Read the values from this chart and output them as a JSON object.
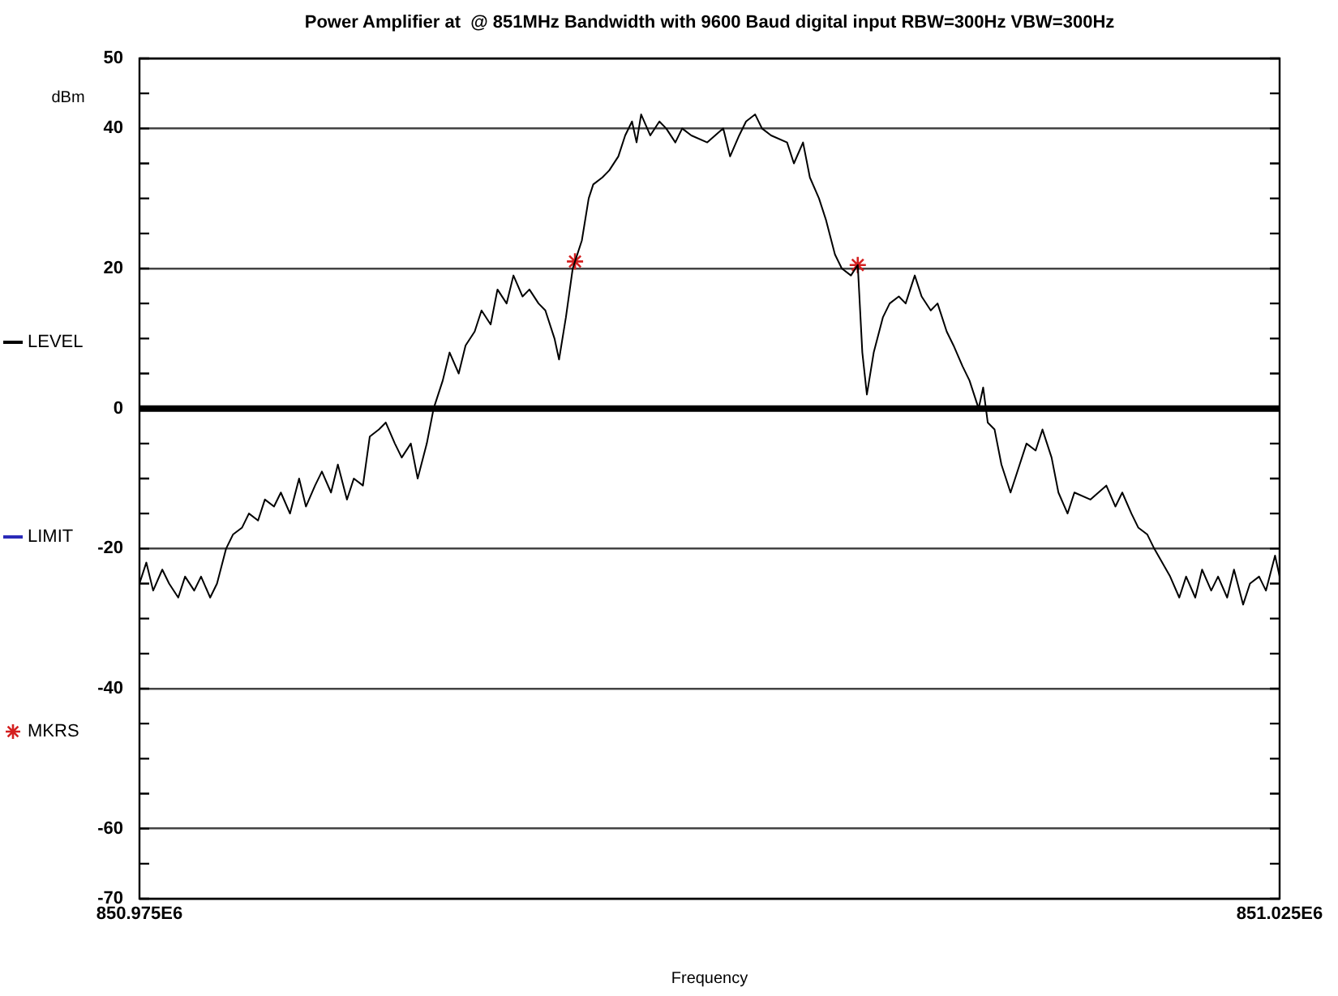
{
  "chart_data": {
    "type": "line",
    "title": "Power Amplifier at  @ 851MHz Bandwidth with 9600 Baud digital input RBW=300Hz VBW=300Hz",
    "xlabel": "Frequency",
    "ylabel": "dBm",
    "series": [
      {
        "name": "LEVEL",
        "type": "line",
        "color": "#000000",
        "x": [
          850975000,
          850975300,
          850975600,
          850976000,
          850976300,
          850976700,
          850977000,
          850977400,
          850977700,
          850978100,
          850978400,
          850978800,
          850979100,
          850979500,
          850979800,
          850980200,
          850980500,
          850980900,
          850981200,
          850981600,
          850982000,
          850982300,
          850982700,
          850983000,
          850983400,
          850983700,
          850984100,
          850984400,
          850984800,
          850985100,
          850985500,
          850985800,
          850986200,
          850986500,
          850986900,
          850987200,
          850987600,
          850987900,
          850988300,
          850988600,
          850989000,
          850989300,
          850989700,
          850990000,
          850990400,
          850990700,
          850991100,
          850991400,
          850991800,
          850992100,
          850992500,
          850992800,
          850993200,
          850993400,
          850993700,
          850994000,
          850994100,
          850994400,
          850994700,
          850994900,
          850995300,
          850995600,
          850996000,
          850996300,
          850996600,
          850996800,
          850997000,
          850997400,
          850997800,
          850998100,
          850998500,
          850998800,
          850999200,
          850999900,
          851000600,
          851000900,
          851001300,
          851001600,
          851002000,
          851002300,
          851002700,
          851003400,
          851003700,
          851004100,
          851004400,
          851004800,
          851005100,
          851005500,
          851005800,
          851006200,
          851006500,
          851006700,
          851006900,
          851007200,
          851007600,
          851007900,
          851008300,
          851008600,
          851009000,
          851009300,
          851009700,
          851010000,
          851010400,
          851010700,
          851011100,
          851011400,
          851011800,
          851012000,
          851012200,
          851012500,
          851012800,
          851013200,
          851013600,
          851013900,
          851014300,
          851014600,
          851015000,
          851015300,
          851015700,
          851016000,
          851016700,
          851017400,
          851017800,
          851018100,
          851018500,
          851018800,
          851019200,
          851019500,
          851020200,
          851020600,
          851020900,
          851021300,
          851021600,
          851022000,
          851022300,
          851022700,
          851023000,
          851023400,
          851023700,
          851024100,
          851024400,
          851024800,
          851025000
        ],
        "values": [
          -25,
          -22,
          -26,
          -23,
          -25,
          -27,
          -24,
          -26,
          -24,
          -27,
          -25,
          -20,
          -18,
          -17,
          -15,
          -16,
          -13,
          -14,
          -12,
          -15,
          -10,
          -14,
          -11,
          -9,
          -12,
          -8,
          -13,
          -10,
          -11,
          -4,
          -3,
          -2,
          -5,
          -7,
          -5,
          -10,
          -5,
          0,
          4,
          8,
          5,
          9,
          11,
          14,
          12,
          17,
          15,
          19,
          16,
          17,
          15,
          14,
          10,
          7,
          13,
          20,
          21,
          24,
          30,
          32,
          33,
          34,
          36,
          39,
          41,
          38,
          42,
          39,
          41,
          40,
          38,
          40,
          39,
          38,
          40,
          36,
          39,
          41,
          42,
          40,
          39,
          38,
          35,
          38,
          33,
          30,
          27,
          22,
          20,
          19,
          20.5,
          8,
          2,
          8,
          13,
          15,
          16,
          15,
          19,
          16,
          14,
          15,
          11,
          9,
          6,
          4,
          0,
          3,
          -2,
          -3,
          -8,
          -12,
          -8,
          -5,
          -6,
          -3,
          -7,
          -12,
          -15,
          -12,
          -13,
          -11,
          -14,
          -12,
          -15,
          -17,
          -18,
          -20,
          -24,
          -27,
          -24,
          -27,
          -23,
          -26,
          -24,
          -27,
          -23,
          -28,
          -25,
          -24,
          -26,
          -21,
          -24
        ]
      },
      {
        "name": "LIMIT",
        "type": "line",
        "color": "#2a2ab8"
      },
      {
        "name": "MKRS",
        "type": "scatter",
        "marker": "cross",
        "color": "#d42020",
        "x": [
          850994100,
          851006500
        ],
        "values": [
          21,
          20.5
        ]
      }
    ],
    "xlim": [
      850975000,
      851025000
    ],
    "xticks": [
      {
        "value": 850975000,
        "label": "850.975E6"
      },
      {
        "value": 851025000,
        "label": "851.025E6"
      }
    ],
    "ylim": [
      -70,
      50
    ],
    "yticks": [
      -70,
      {
        "value": -65,
        "label": null
      },
      -60,
      {
        "value": -55,
        "label": null
      },
      {
        "value": -50,
        "label": null
      },
      {
        "value": -45,
        "label": null
      },
      -40,
      {
        "value": -35,
        "label": null
      },
      {
        "value": -30,
        "label": null
      },
      {
        "value": -25,
        "label": null
      },
      -20,
      {
        "value": -15,
        "label": null
      },
      {
        "value": -10,
        "label": null
      },
      {
        "value": -5,
        "label": null
      },
      0,
      {
        "value": 5,
        "label": null
      },
      {
        "value": 10,
        "label": null
      },
      {
        "value": 15,
        "label": null
      },
      20,
      {
        "value": 25,
        "label": null
      },
      {
        "value": 30,
        "label": null
      },
      {
        "value": 35,
        "label": null
      },
      40,
      {
        "value": 45,
        "label": null
      },
      50
    ],
    "ref_lines": [
      {
        "axis": "y",
        "value": 0,
        "color": "#000000"
      }
    ],
    "grid": "y",
    "legend": "left",
    "marker": "none",
    "line_style": "solid"
  }
}
